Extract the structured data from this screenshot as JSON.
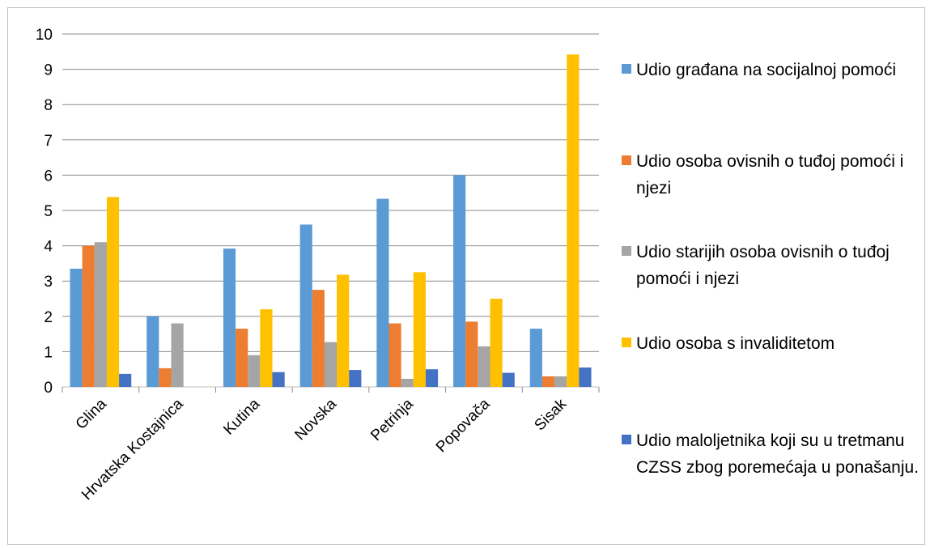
{
  "chart_data": {
    "type": "bar",
    "categories": [
      "Glina",
      "Hrvatska Kostajnica",
      "Kutina",
      "Novska",
      "Petrinja",
      "Popovača",
      "Sisak"
    ],
    "series": [
      {
        "name": "Udio građana na socijalnoj pomoći",
        "color": "#5B9BD5",
        "values": [
          3.35,
          2.0,
          3.92,
          4.6,
          5.33,
          6.0,
          1.65
        ]
      },
      {
        "name": "Udio osoba ovisnih o tuđoj pomoći i njezi",
        "color": "#ED7D31",
        "values": [
          4.0,
          0.53,
          1.65,
          2.75,
          1.8,
          1.85,
          0.3
        ]
      },
      {
        "name": "Udio starijih osoba ovisnih o tuđoj pomoći i njezi",
        "color": "#A5A5A5",
        "values": [
          4.1,
          1.8,
          0.9,
          1.27,
          0.23,
          1.15,
          0.3
        ]
      },
      {
        "name": "Udio osoba s invaliditetom",
        "color": "#FFC000",
        "values": [
          5.38,
          0,
          2.2,
          3.18,
          3.25,
          2.5,
          9.42
        ]
      },
      {
        "name": "Udio maloljetnika koji su u tretmanu CZSS zbog poremećaja u ponašanju.",
        "color": "#4472C4",
        "values": [
          0.37,
          0,
          0.42,
          0.48,
          0.5,
          0.4,
          0.55
        ]
      }
    ],
    "ylim": [
      0,
      10
    ],
    "yticks": [
      "0",
      "1",
      "2",
      "3",
      "4",
      "5",
      "6",
      "7",
      "8",
      "9",
      "10"
    ],
    "grid": true,
    "legend": "right",
    "title": "",
    "xlabel": "",
    "ylabel": ""
  }
}
